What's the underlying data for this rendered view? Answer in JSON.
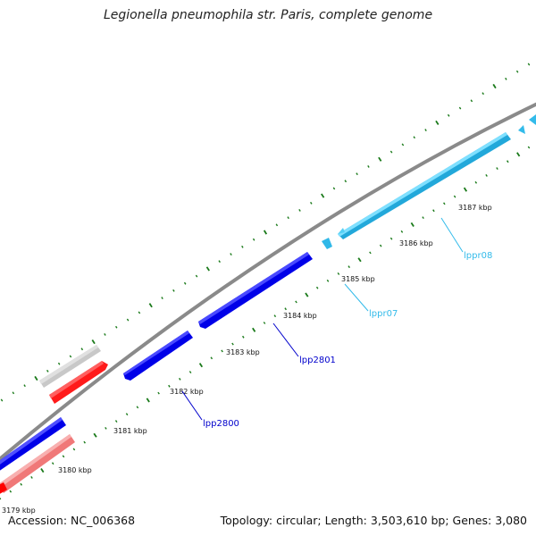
{
  "title": "Legionella pneumophila str. Paris, complete genome",
  "footer": {
    "accession": "Accession: NC_006368",
    "summary": "Topology: circular; Length: 3,503,610 bp; Genes: 3,080"
  },
  "colors": {
    "backbone": "#8a8a8a",
    "ticks": "#1a7a1a",
    "blue": "#0000ee",
    "cyan": "#44ccf0",
    "red": "#ff0000",
    "pink": "#f08080",
    "gray": "#c8c8c8"
  },
  "ticks": [
    "3179 kbp",
    "3180 kbp",
    "3181 kbp",
    "3182 kbp",
    "3183 kbp",
    "3184 kbp",
    "3185 kbp",
    "3186 kbp",
    "3187 kbp"
  ],
  "genes": {
    "lpp2800": "lpp2800",
    "lpp2801": "lpp2801",
    "lppr07": "lppr07",
    "lppr08": "lppr08"
  }
}
